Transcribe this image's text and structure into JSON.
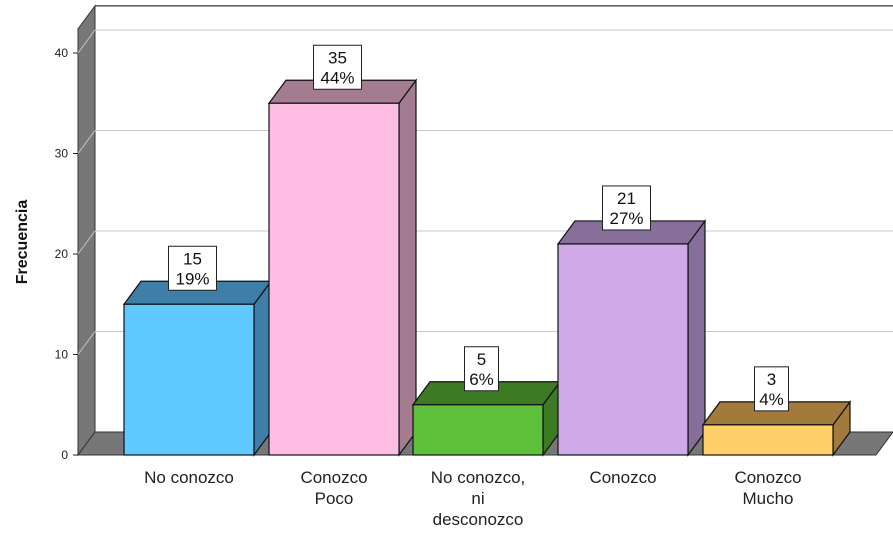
{
  "chart_data": {
    "type": "bar",
    "title": "",
    "xlabel": "",
    "ylabel": "Frecuencia",
    "ylim": [
      0,
      40
    ],
    "yticks": [
      0,
      10,
      20,
      30,
      40
    ],
    "grid": true,
    "legend": "none",
    "categories": [
      [
        "No conozco"
      ],
      [
        "Conozco",
        "Poco"
      ],
      [
        "No conozco,",
        "ni",
        "desconozco"
      ],
      [
        "Conozco"
      ],
      [
        "Conozco",
        "Mucho"
      ]
    ],
    "values": [
      15,
      35,
      5,
      21,
      3
    ],
    "percent_labels": [
      "19%",
      "44%",
      "6%",
      "27%",
      "4%"
    ],
    "colors": [
      "#5fc8ff",
      "#fdbde3",
      "#5dbf3a",
      "#cfaae6",
      "#fdd06a"
    ],
    "side_colors": [
      "#3f7ea6",
      "#a37c90",
      "#3c7b23",
      "#86709a",
      "#a17a3c"
    ]
  }
}
